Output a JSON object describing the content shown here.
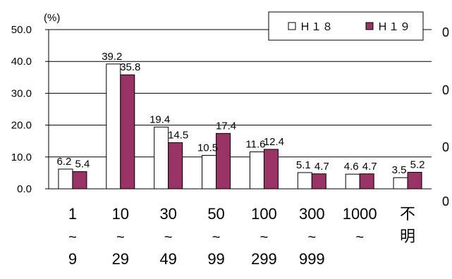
{
  "chart_data": {
    "type": "bar",
    "yunit": "(%)",
    "ylim": [
      0,
      50
    ],
    "yticks": [
      "0.0",
      "10.0",
      "20.0",
      "30.0",
      "40.0",
      "50.0"
    ],
    "right_ticks": [
      "0",
      "0",
      "0",
      "0"
    ],
    "grid": true,
    "legend_position": "top-right",
    "categories": [
      {
        "lines": [
          "1",
          "~",
          "9"
        ]
      },
      {
        "lines": [
          "10",
          "~",
          "29"
        ]
      },
      {
        "lines": [
          "30",
          "~",
          "49"
        ]
      },
      {
        "lines": [
          "50",
          "~",
          "99"
        ]
      },
      {
        "lines": [
          "100",
          "~",
          "299"
        ]
      },
      {
        "lines": [
          "300",
          "~",
          "999"
        ]
      },
      {
        "lines": [
          "1000",
          "~"
        ]
      },
      {
        "lines": [
          "不",
          "明"
        ]
      }
    ],
    "series": [
      {
        "name": "Ｈ１８",
        "color": "#ffffff",
        "values": [
          6.2,
          39.2,
          19.4,
          10.5,
          11.6,
          5.1,
          4.6,
          3.5
        ],
        "labels": [
          "6.2",
          "39.2",
          "19.4",
          "10.5",
          "11.6",
          "5.1",
          "4.6",
          "3.5"
        ]
      },
      {
        "name": "Ｈ１９",
        "color": "#993366",
        "values": [
          5.4,
          35.8,
          14.5,
          17.4,
          12.4,
          4.7,
          4.7,
          5.2
        ],
        "labels": [
          "5.4",
          "35.8",
          "14.5",
          "17.4",
          "12.4",
          "4.7",
          "4.7",
          "5.2"
        ]
      }
    ]
  }
}
